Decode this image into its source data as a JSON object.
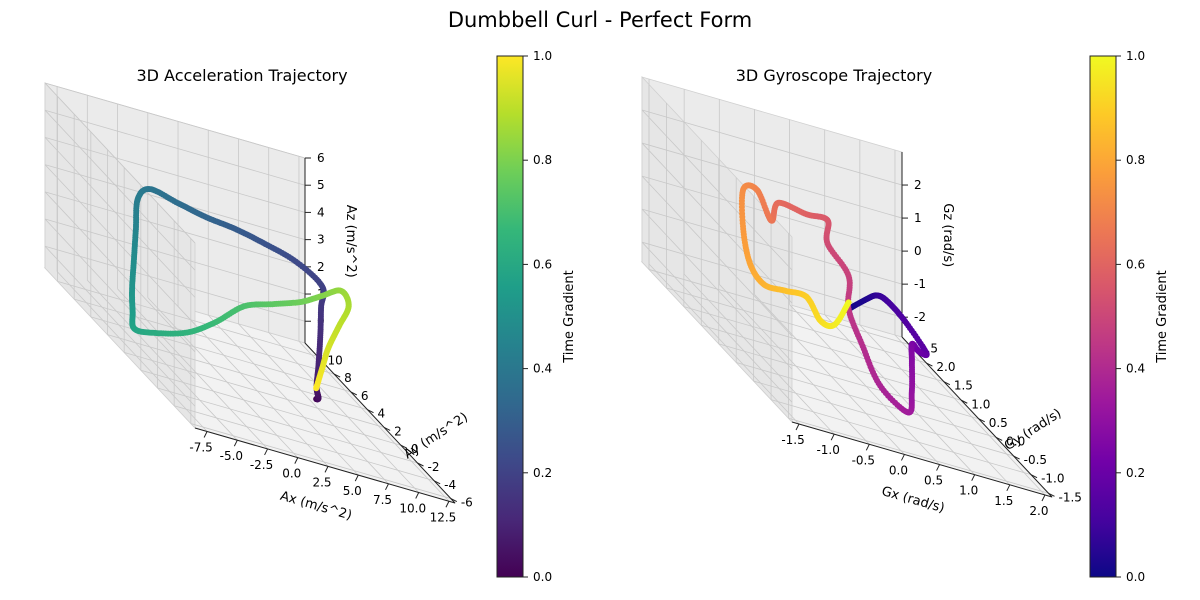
{
  "figure": {
    "title": "Dumbbell Curl - Perfect Form"
  },
  "chart_data": [
    {
      "type": "scatter",
      "projection": "3d",
      "title": "3D Acceleration Trajectory",
      "xlabel": "Ax (m/s^2)",
      "ylabel": "Ay (m/s^2)",
      "zlabel": "Az (m/s^2)",
      "xlim": [
        -8.5,
        13
      ],
      "ylim": [
        -6.5,
        11.5
      ],
      "zlim": [
        -0.8,
        6
      ],
      "xticks": [
        "-7.5",
        "-5.0",
        "-2.5",
        "0.0",
        "2.5",
        "5.0",
        "7.5",
        "10.0",
        "12.5"
      ],
      "yticks": [
        "-6",
        "-4",
        "-2",
        "0",
        "2",
        "4",
        "6",
        "8",
        "10"
      ],
      "zticks": [
        "0",
        "1",
        "2",
        "3",
        "4",
        "5",
        "6"
      ],
      "colormap": "viridis",
      "colorbar": {
        "label": "Time Gradient",
        "ticks": [
          "0.0",
          "0.2",
          "0.4",
          "0.6",
          "0.8",
          "1.0"
        ],
        "range": [
          0,
          1
        ]
      },
      "grid": true,
      "trajectory": [
        [
          6.0,
          0.0,
          0.0
        ],
        [
          5.5,
          -1.0,
          0.3
        ],
        [
          5.0,
          -1.5,
          0.8
        ],
        [
          5.5,
          -1.0,
          1.5
        ],
        [
          6.0,
          -0.5,
          2.5
        ],
        [
          6.2,
          -0.3,
          3.5
        ],
        [
          6.5,
          0.0,
          4.2
        ],
        [
          5.0,
          1.0,
          4.6
        ],
        [
          3.0,
          2.0,
          4.7
        ],
        [
          1.0,
          2.5,
          4.8
        ],
        [
          -1.0,
          3.0,
          4.8
        ],
        [
          -3.0,
          3.5,
          4.9
        ],
        [
          -5.0,
          4.0,
          5.0
        ],
        [
          -6.0,
          4.0,
          4.5
        ],
        [
          -6.5,
          3.5,
          3.5
        ],
        [
          -7.0,
          3.0,
          2.5
        ],
        [
          -7.5,
          2.5,
          1.5
        ],
        [
          -7.8,
          2.0,
          0.8
        ],
        [
          -8.0,
          1.5,
          0.3
        ],
        [
          -7.0,
          0.5,
          0.6
        ],
        [
          -5.0,
          -0.5,
          1.2
        ],
        [
          -3.0,
          -1.0,
          2.0
        ],
        [
          -1.0,
          -1.5,
          3.0
        ],
        [
          1.0,
          -2.0,
          3.5
        ],
        [
          3.0,
          -2.5,
          4.0
        ],
        [
          5.0,
          -2.0,
          4.3
        ],
        [
          7.0,
          -1.5,
          4.6
        ],
        [
          8.0,
          -1.0,
          4.0
        ],
        [
          7.5,
          -0.5,
          3.0
        ],
        [
          7.0,
          0.0,
          2.0
        ],
        [
          6.5,
          0.0,
          1.2
        ],
        [
          6.0,
          0.0,
          0.4
        ]
      ]
    },
    {
      "type": "scatter",
      "projection": "3d",
      "title": "3D Gyroscope Trajectory",
      "xlabel": "Gx (rad/s)",
      "ylabel": "Gy (rad/s)",
      "zlabel": "Gz (rad/s)",
      "xlim": [
        -1.6,
        2.1
      ],
      "ylim": [
        -1.6,
        2.7
      ],
      "zlim": [
        -2.6,
        3.0
      ],
      "xticks": [
        "-1.5",
        "-1.0",
        "-0.5",
        "0.0",
        "0.5",
        "1.0",
        "1.5",
        "2.0"
      ],
      "yticks": [
        "-1.5",
        "-1.0",
        "-0.5",
        "0.0",
        "0.5",
        "1.0",
        "1.5",
        "2.0",
        "2.5"
      ],
      "zticks": [
        "-2",
        "-1",
        "0",
        "1",
        "2"
      ],
      "colormap": "plasma",
      "colorbar": {
        "label": "Time Gradient",
        "ticks": [
          "0.0",
          "0.2",
          "0.4",
          "0.6",
          "0.8",
          "1.0"
        ],
        "range": [
          0,
          1
        ]
      },
      "grid": true,
      "trajectory": [
        [
          0.0,
          0.0,
          0.0
        ],
        [
          0.4,
          0.3,
          0.2
        ],
        [
          0.8,
          0.8,
          0.0
        ],
        [
          1.2,
          1.3,
          -0.5
        ],
        [
          1.6,
          1.6,
          -1.2
        ],
        [
          1.8,
          1.4,
          -1.8
        ],
        [
          1.5,
          1.0,
          -1.5
        ],
        [
          1.2,
          0.6,
          -1.0
        ],
        [
          1.0,
          0.2,
          -1.2
        ],
        [
          0.8,
          -0.2,
          -1.8
        ],
        [
          0.6,
          -0.5,
          -2.2
        ],
        [
          0.3,
          -0.3,
          -1.8
        ],
        [
          0.2,
          0.0,
          -1.0
        ],
        [
          0.0,
          0.0,
          0.0
        ],
        [
          0.0,
          0.0,
          1.0
        ],
        [
          -0.3,
          0.0,
          1.8
        ],
        [
          -0.3,
          0.0,
          2.5
        ],
        [
          -0.6,
          0.0,
          2.5
        ],
        [
          -1.0,
          0.0,
          2.6
        ],
        [
          -1.1,
          0.0,
          2.0
        ],
        [
          -1.3,
          0.0,
          2.8
        ],
        [
          -1.5,
          0.0,
          2.7
        ],
        [
          -1.5,
          0.0,
          1.5
        ],
        [
          -1.4,
          0.0,
          0.5
        ],
        [
          -1.2,
          0.0,
          0.0
        ],
        [
          -0.9,
          0.0,
          0.0
        ],
        [
          -0.6,
          0.0,
          0.0
        ],
        [
          -0.4,
          0.0,
          -0.6
        ],
        [
          -0.2,
          0.0,
          -0.6
        ],
        [
          0.0,
          0.0,
          0.2
        ]
      ]
    }
  ]
}
